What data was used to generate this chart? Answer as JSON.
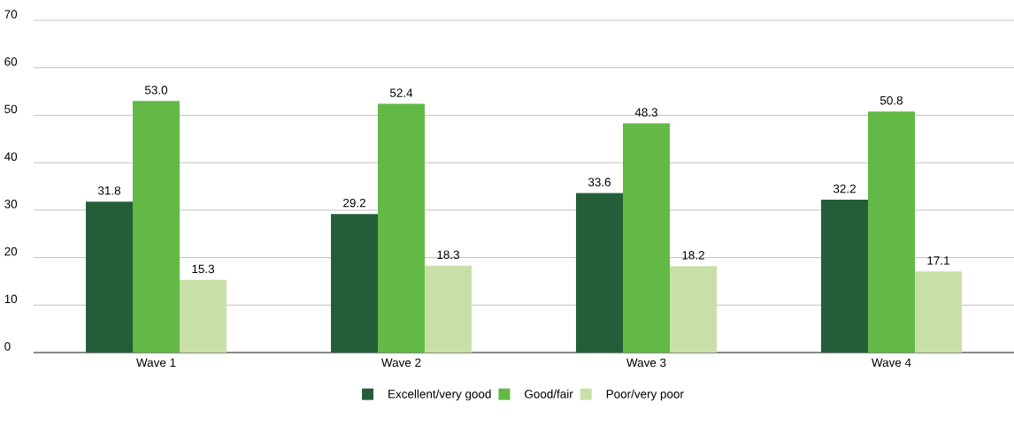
{
  "chart_data": {
    "type": "bar",
    "categories": [
      "Wave 1",
      "Wave 2",
      "Wave 3",
      "Wave 4"
    ],
    "series": [
      {
        "name": "Excellent/very good",
        "color": "#245e38",
        "values": [
          31.8,
          29.2,
          33.6,
          32.2
        ],
        "value_labels": [
          "31.8",
          "29.2",
          "33.6",
          "32.2"
        ]
      },
      {
        "name": "Good/fair",
        "color": "#62b946",
        "values": [
          53.0,
          52.4,
          48.3,
          50.8
        ],
        "value_labels": [
          "53.0",
          "52.4",
          "48.3",
          "50.8"
        ]
      },
      {
        "name": "Poor/very poor",
        "color": "#c8e0a8",
        "values": [
          15.3,
          18.3,
          18.2,
          17.1
        ],
        "value_labels": [
          "15.3",
          "18.3",
          "18.2",
          "17.1"
        ]
      }
    ],
    "ylim": [
      0,
      70
    ],
    "yticks": [
      0,
      10,
      20,
      30,
      40,
      50,
      60,
      70
    ],
    "grid": "y",
    "legend": "bottom"
  }
}
